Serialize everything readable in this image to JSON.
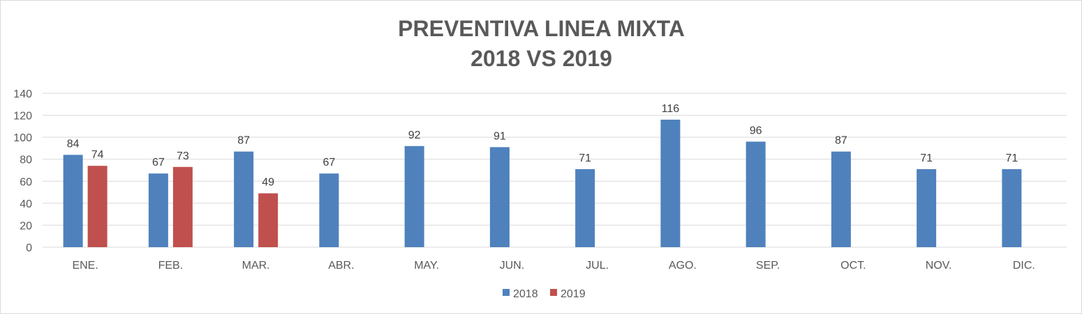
{
  "chart_data": {
    "type": "bar",
    "title_lines": [
      "PREVENTIVA LINEA MIXTA",
      "2018 VS 2019"
    ],
    "categories": [
      "ENE.",
      "FEB.",
      "MAR.",
      "ABR.",
      "MAY.",
      "JUN.",
      "JUL.",
      "AGO.",
      "SEP.",
      "OCT.",
      "NOV.",
      "DIC."
    ],
    "series": [
      {
        "name": "2018",
        "color": "#4f81bd",
        "values": [
          84,
          67,
          87,
          67,
          92,
          91,
          71,
          116,
          96,
          87,
          71,
          71
        ]
      },
      {
        "name": "2019",
        "color": "#c0504d",
        "values": [
          74,
          73,
          49,
          null,
          null,
          null,
          null,
          null,
          null,
          null,
          null,
          null
        ]
      }
    ],
    "ylim": [
      0,
      140
    ],
    "yticks": [
      0,
      20,
      40,
      60,
      80,
      100,
      120,
      140
    ],
    "grid": true,
    "legend_position": "bottom"
  }
}
